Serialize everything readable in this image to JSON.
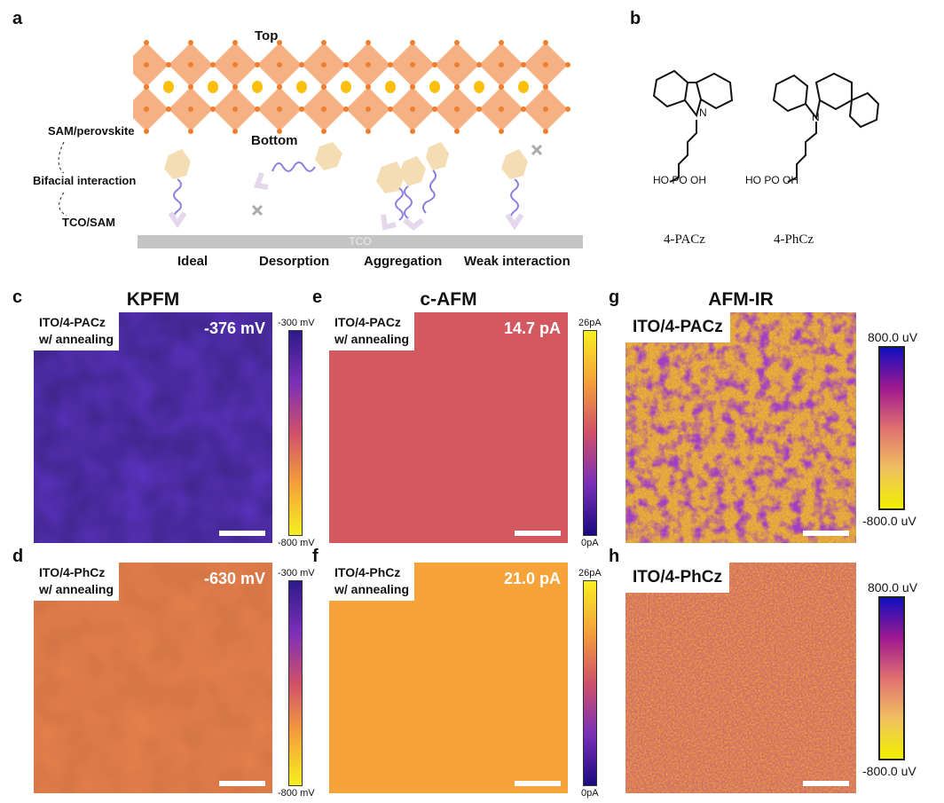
{
  "panel_a": {
    "label": "a",
    "top": "Top",
    "bottom": "Bottom",
    "sam_perovskite": "SAM/perovskite",
    "bifacial": "Bifacial interaction",
    "tco_sam": "TCO/SAM",
    "tco": "TCO",
    "cases": [
      "Ideal",
      "Desorption",
      "Aggregation",
      "Weak interaction"
    ]
  },
  "panel_b": {
    "label": "b",
    "molecules": [
      "4-PACz",
      "4-PhCz"
    ],
    "atoms": {
      "n": "N",
      "p": "P",
      "o": "O",
      "ho": "HO",
      "oh": "OH"
    }
  },
  "kpfm": {
    "title": "KPFM",
    "cbar_max": "-300 mV",
    "cbar_min": "-800 mV",
    "c": {
      "label": "c",
      "sample": "ITO/4-PACz",
      "cond": "w/ annealing",
      "value": "-376 mV",
      "color": "#5b34c4"
    },
    "d": {
      "label": "d",
      "sample": "ITO/4-PhCz",
      "cond": "w/ annealing",
      "value": "-630 mV",
      "color": "#e8814c"
    }
  },
  "cafm": {
    "title": "c-AFM",
    "cbar_max": "26pA",
    "cbar_min": "0pA",
    "e": {
      "label": "e",
      "sample": "ITO/4-PACz",
      "cond": "w/ annealing",
      "value": "14.7 pA",
      "color": "#d3585f"
    },
    "f": {
      "label": "f",
      "sample": "ITO/4-PhCz",
      "cond": "w/ annealing",
      "value": "21.0 pA",
      "color": "#f6a43a"
    }
  },
  "afmir": {
    "title": "AFM-IR",
    "cbar_max": "800.0 uV",
    "cbar_min": "-800.0 uV",
    "g": {
      "label": "g",
      "sample": "ITO/4-PACz"
    },
    "h": {
      "label": "h",
      "sample": "ITO/4-PhCz"
    }
  }
}
